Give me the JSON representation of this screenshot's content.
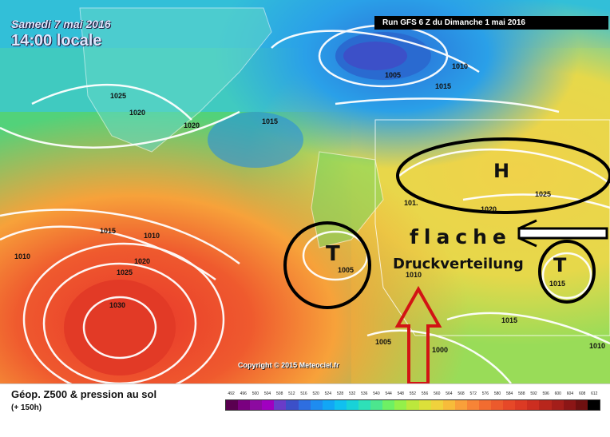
{
  "header": {
    "date": "Samedi 7 mai 2016",
    "time": "14:00 locale",
    "run": "Run GFS 6 Z du Dimanche 1 mai 2016"
  },
  "legend": {
    "title": "Géop. Z500 & pression au sol",
    "forecast": "(+ 150h)",
    "scale_values": [
      "492",
      "496",
      "500",
      "504",
      "508",
      "512",
      "516",
      "520",
      "524",
      "528",
      "532",
      "536",
      "540",
      "544",
      "548",
      "552",
      "556",
      "560",
      "564",
      "568",
      "572",
      "576",
      "580",
      "584",
      "588",
      "592",
      "596",
      "600",
      "604",
      "608",
      "612"
    ],
    "scale_colors": [
      "#5a0050",
      "#7a0080",
      "#8c0aa0",
      "#a000c0",
      "#6a3cc8",
      "#3c50c8",
      "#2e6ee0",
      "#1e8cf0",
      "#12a6f5",
      "#10c0f0",
      "#18d2d8",
      "#2ee0b8",
      "#4ce68e",
      "#6ef064",
      "#94f04a",
      "#bce83c",
      "#dce03a",
      "#f0d23c",
      "#f7bc3a",
      "#f9a03a",
      "#f78436",
      "#f26c30",
      "#ec5a2c",
      "#e64828",
      "#dc3a24",
      "#cc2e20",
      "#b8261c",
      "#a41e1a",
      "#8c1616",
      "#6e1010",
      "#000000"
    ]
  },
  "copyright": "Copyright © 2015 Meteociel.fr",
  "annotations": {
    "flache": "flache",
    "druckverteilung": "Druckverteilung",
    "high": "H",
    "low_west": "T",
    "low_east": "T"
  },
  "isobar_labels": {
    "l1": "1010",
    "l2": "1005",
    "l3": "1015",
    "l4": "1025",
    "l5": "1020",
    "l6": "1020",
    "l7": "1015",
    "l8": "1015",
    "l9": "1010",
    "l10": "1020",
    "l11": "1025",
    "l12": "1030",
    "l13": "1010",
    "l14": "1005",
    "l15": "1010",
    "l16": "1025",
    "l17": "1020",
    "l18": "1015",
    "l19": "1015",
    "l20": "1005",
    "l21": "1000",
    "l22": "1010",
    "l23": "101."
  },
  "colors": {
    "annotation_arrow": "#d21414",
    "annotation_lines": "#000000"
  }
}
